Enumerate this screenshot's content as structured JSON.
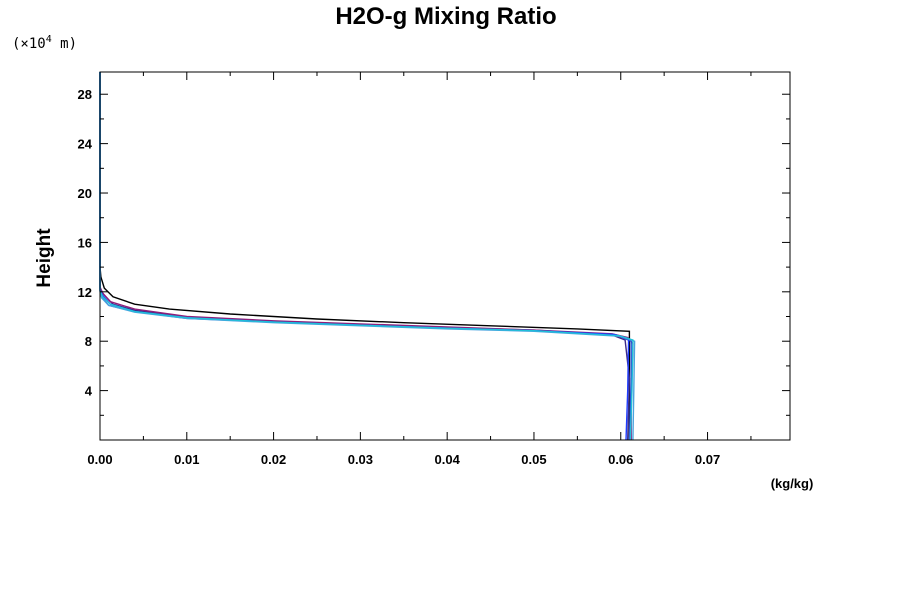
{
  "chart_data": {
    "type": "line",
    "title": "H2O-g Mixing Ratio",
    "ylabel": "Height",
    "yscale_label": "(×10",
    "yscale_exponent": "4",
    "yscale_unit": " m)",
    "xunit": "(kg/kg)",
    "xlim": [
      0,
      0.0795
    ],
    "ylim": [
      0,
      29.8
    ],
    "xticks": [
      0.0,
      0.01,
      0.02,
      0.03,
      0.04,
      0.05,
      0.06,
      0.07
    ],
    "xtick_labels": [
      "0.00",
      "0.01",
      "0.02",
      "0.03",
      "0.04",
      "0.05",
      "0.06",
      "0.07"
    ],
    "yticks": [
      4,
      8,
      12,
      16,
      20,
      24,
      28
    ],
    "ytick_labels": [
      "4",
      "8",
      "12",
      "16",
      "20",
      "24",
      "28"
    ],
    "grid": false,
    "series": [
      {
        "color": "#000000",
        "points": [
          [
            0.061,
            0
          ],
          [
            0.061,
            4
          ],
          [
            0.061,
            8.8
          ],
          [
            0.055,
            9.0
          ],
          [
            0.045,
            9.25
          ],
          [
            0.035,
            9.5
          ],
          [
            0.025,
            9.8
          ],
          [
            0.015,
            10.2
          ],
          [
            0.008,
            10.6
          ],
          [
            0.004,
            11.0
          ],
          [
            0.0015,
            11.6
          ],
          [
            0.0005,
            12.3
          ],
          [
            0.0001,
            13.2
          ],
          [
            0.0,
            14.0
          ],
          [
            0.0,
            29.8
          ]
        ]
      },
      {
        "color": "#3b2a8a",
        "points": [
          [
            0.0608,
            0
          ],
          [
            0.061,
            5
          ],
          [
            0.0605,
            8.1
          ],
          [
            0.059,
            8.5
          ],
          [
            0.05,
            8.9
          ],
          [
            0.04,
            9.1
          ],
          [
            0.03,
            9.35
          ],
          [
            0.02,
            9.6
          ],
          [
            0.01,
            9.95
          ],
          [
            0.004,
            10.5
          ],
          [
            0.0015,
            11.0
          ],
          [
            0.0004,
            11.8
          ],
          [
            0.0,
            12.3
          ],
          [
            0.0,
            29.8
          ]
        ]
      },
      {
        "color": "#8e1f7a",
        "points": [
          [
            0.0612,
            0
          ],
          [
            0.0612,
            4
          ],
          [
            0.0614,
            7.8
          ],
          [
            0.0608,
            8.3
          ],
          [
            0.059,
            8.6
          ],
          [
            0.05,
            8.9
          ],
          [
            0.04,
            9.15
          ],
          [
            0.03,
            9.4
          ],
          [
            0.02,
            9.65
          ],
          [
            0.01,
            10.0
          ],
          [
            0.004,
            10.6
          ],
          [
            0.0012,
            11.2
          ],
          [
            0.0003,
            11.9
          ],
          [
            0.0,
            12.4
          ],
          [
            0.0,
            29.8
          ]
        ]
      },
      {
        "color": "#2a56d6",
        "points": [
          [
            0.061,
            0
          ],
          [
            0.0612,
            5
          ],
          [
            0.0612,
            8.0
          ],
          [
            0.0595,
            8.5
          ],
          [
            0.05,
            8.85
          ],
          [
            0.04,
            9.05
          ],
          [
            0.03,
            9.3
          ],
          [
            0.02,
            9.55
          ],
          [
            0.01,
            9.85
          ],
          [
            0.004,
            10.4
          ],
          [
            0.001,
            10.9
          ],
          [
            0.0002,
            11.6
          ],
          [
            0.0,
            12.1
          ],
          [
            0.0,
            29.8
          ]
        ]
      },
      {
        "color": "#1e3cff",
        "points": [
          [
            0.0606,
            0
          ],
          [
            0.0608,
            4
          ],
          [
            0.0609,
            8.2
          ],
          [
            0.0592,
            8.55
          ],
          [
            0.05,
            8.85
          ],
          [
            0.04,
            9.05
          ],
          [
            0.03,
            9.3
          ],
          [
            0.02,
            9.55
          ],
          [
            0.01,
            9.9
          ],
          [
            0.004,
            10.4
          ],
          [
            0.0012,
            11.0
          ],
          [
            0.0003,
            11.7
          ],
          [
            0.0,
            12.2
          ],
          [
            0.0,
            29.8
          ]
        ]
      },
      {
        "color": "#4aa3df",
        "points": [
          [
            0.0614,
            0
          ],
          [
            0.0615,
            4
          ],
          [
            0.0616,
            8.0
          ],
          [
            0.06,
            8.4
          ],
          [
            0.05,
            8.8
          ],
          [
            0.04,
            9.0
          ],
          [
            0.03,
            9.25
          ],
          [
            0.02,
            9.5
          ],
          [
            0.01,
            9.85
          ],
          [
            0.004,
            10.35
          ],
          [
            0.001,
            10.9
          ],
          [
            0.0002,
            11.5
          ],
          [
            0.0,
            12.0
          ],
          [
            0.0,
            29.8
          ]
        ]
      },
      {
        "color": "#20c0d8",
        "points": [
          [
            0.0611,
            0
          ],
          [
            0.0613,
            4
          ],
          [
            0.0614,
            8.1
          ],
          [
            0.0598,
            8.45
          ],
          [
            0.05,
            8.85
          ],
          [
            0.04,
            9.05
          ],
          [
            0.03,
            9.3
          ],
          [
            0.02,
            9.55
          ],
          [
            0.01,
            9.9
          ],
          [
            0.004,
            10.4
          ],
          [
            0.0012,
            11.0
          ],
          [
            0.0003,
            11.6
          ],
          [
            0.0,
            12.1
          ],
          [
            0.0,
            29.8
          ]
        ]
      }
    ]
  }
}
